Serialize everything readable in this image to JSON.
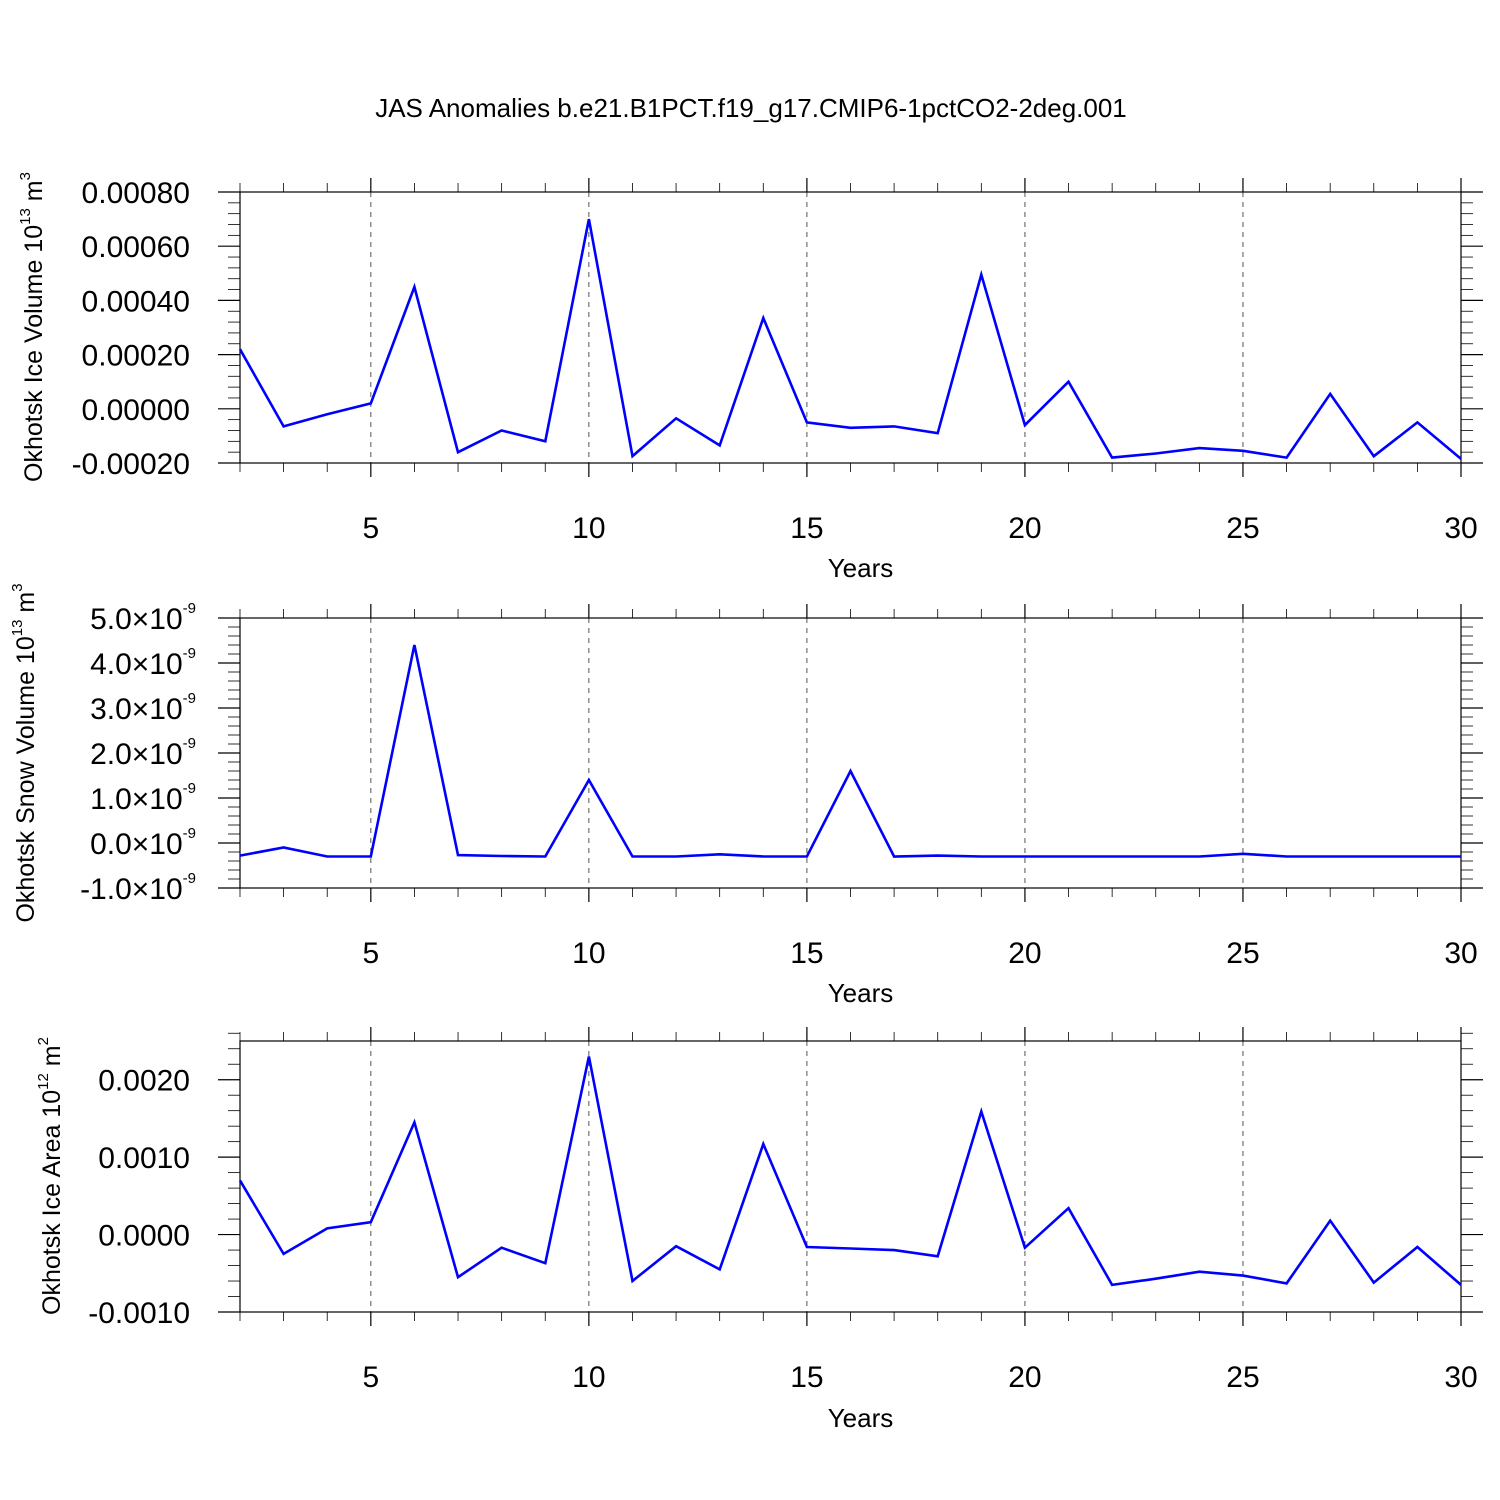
{
  "title": "JAS Anomalies b.e21.B1PCT.f19_g17.CMIP6-1pctCO2-2deg.001",
  "chart_data": [
    {
      "type": "line",
      "xlabel": "Years",
      "ylabel_main": "Okhotsk Ice Volume 10",
      "ylabel_exp": "13",
      "ylabel_unit": " m",
      "ylabel_unit_exp": "3",
      "xlim": [
        2,
        30
      ],
      "ylim": [
        -0.0002,
        0.0008
      ],
      "xticks": [
        5,
        10,
        15,
        20,
        25,
        30
      ],
      "yticks": [
        -0.0002,
        0.0,
        0.0002,
        0.0004,
        0.0006,
        0.0008
      ],
      "ytick_labels": [
        "-0.00020",
        "0.00000",
        "0.00020",
        "0.00040",
        "0.00060",
        "0.00080"
      ],
      "color": "#0000ff",
      "x": [
        2,
        3,
        4,
        5,
        6,
        7,
        8,
        9,
        10,
        11,
        12,
        13,
        14,
        15,
        16,
        17,
        18,
        19,
        20,
        21,
        22,
        23,
        24,
        25,
        26,
        27,
        28,
        29,
        30
      ],
      "values": [
        0.00022,
        -6.5e-05,
        -2e-05,
        2e-05,
        0.00045,
        -0.00016,
        -8e-05,
        -0.00012,
        0.0007,
        -0.000175,
        -3.5e-05,
        -0.000135,
        0.000335,
        -5e-05,
        -7e-05,
        -6.5e-05,
        -9e-05,
        0.000495,
        -6e-05,
        0.0001,
        -0.00018,
        -0.000165,
        -0.000145,
        -0.000155,
        -0.00018,
        5.5e-05,
        -0.000175,
        -5e-05,
        -0.000185
      ]
    },
    {
      "type": "line",
      "xlabel": "Years",
      "ylabel_main": "Okhotsk Snow Volume 10",
      "ylabel_exp": "13",
      "ylabel_unit": " m",
      "ylabel_unit_exp": "3",
      "xlim": [
        2,
        30
      ],
      "ylim": [
        -1e-09,
        5e-09
      ],
      "xticks": [
        5,
        10,
        15,
        20,
        25,
        30
      ],
      "yticks": [
        -1e-09,
        0.0,
        1e-09,
        2e-09,
        3e-09,
        4e-09,
        5e-09
      ],
      "ytick_mantissas": [
        "-1.0",
        "0.0",
        "1.0",
        "2.0",
        "3.0",
        "4.0",
        "5.0"
      ],
      "ytick_times": "×",
      "ytick_base": "10",
      "ytick_exp": "-9",
      "color": "#0000ff",
      "x": [
        2,
        3,
        4,
        5,
        6,
        7,
        8,
        9,
        10,
        11,
        12,
        13,
        14,
        15,
        16,
        17,
        18,
        19,
        20,
        21,
        22,
        23,
        24,
        25,
        26,
        27,
        28,
        29,
        30
      ],
      "values": [
        -2.8e-10,
        -1e-10,
        -3e-10,
        -3e-10,
        4.4e-09,
        -2.7e-10,
        -2.9e-10,
        -3e-10,
        1.4e-09,
        -3e-10,
        -3e-10,
        -2.5e-10,
        -3e-10,
        -3e-10,
        1.6e-09,
        -3e-10,
        -2.8e-10,
        -3e-10,
        -3e-10,
        -3e-10,
        -3e-10,
        -3e-10,
        -3e-10,
        -2.4e-10,
        -3e-10,
        -3e-10,
        -3e-10,
        -3e-10,
        -3e-10
      ]
    },
    {
      "type": "line",
      "xlabel": "Years",
      "ylabel_main": "Okhotsk Ice Area 10",
      "ylabel_exp": "12",
      "ylabel_unit": " m",
      "ylabel_unit_exp": "2",
      "xlim": [
        2,
        30
      ],
      "ylim": [
        -0.001,
        0.0025
      ],
      "xticks": [
        5,
        10,
        15,
        20,
        25,
        30
      ],
      "yticks": [
        -0.001,
        0.0,
        0.001,
        0.002
      ],
      "ytick_labels": [
        "-0.0010",
        "0.0000",
        "0.0010",
        "0.0020"
      ],
      "color": "#0000ff",
      "x": [
        2,
        3,
        4,
        5,
        6,
        7,
        8,
        9,
        10,
        11,
        12,
        13,
        14,
        15,
        16,
        17,
        18,
        19,
        20,
        21,
        22,
        23,
        24,
        25,
        26,
        27,
        28,
        29,
        30
      ],
      "values": [
        0.0007,
        -0.00025,
        8e-05,
        0.00016,
        0.00145,
        -0.00055,
        -0.00017,
        -0.00037,
        0.0023,
        -0.0006,
        -0.00015,
        -0.00045,
        0.00117,
        -0.00016,
        -0.00018,
        -0.0002,
        -0.00028,
        0.00159,
        -0.00017,
        0.00034,
        -0.00065,
        -0.00057,
        -0.00048,
        -0.00053,
        -0.00063,
        0.00018,
        -0.00062,
        -0.00016,
        -0.00065
      ]
    }
  ]
}
